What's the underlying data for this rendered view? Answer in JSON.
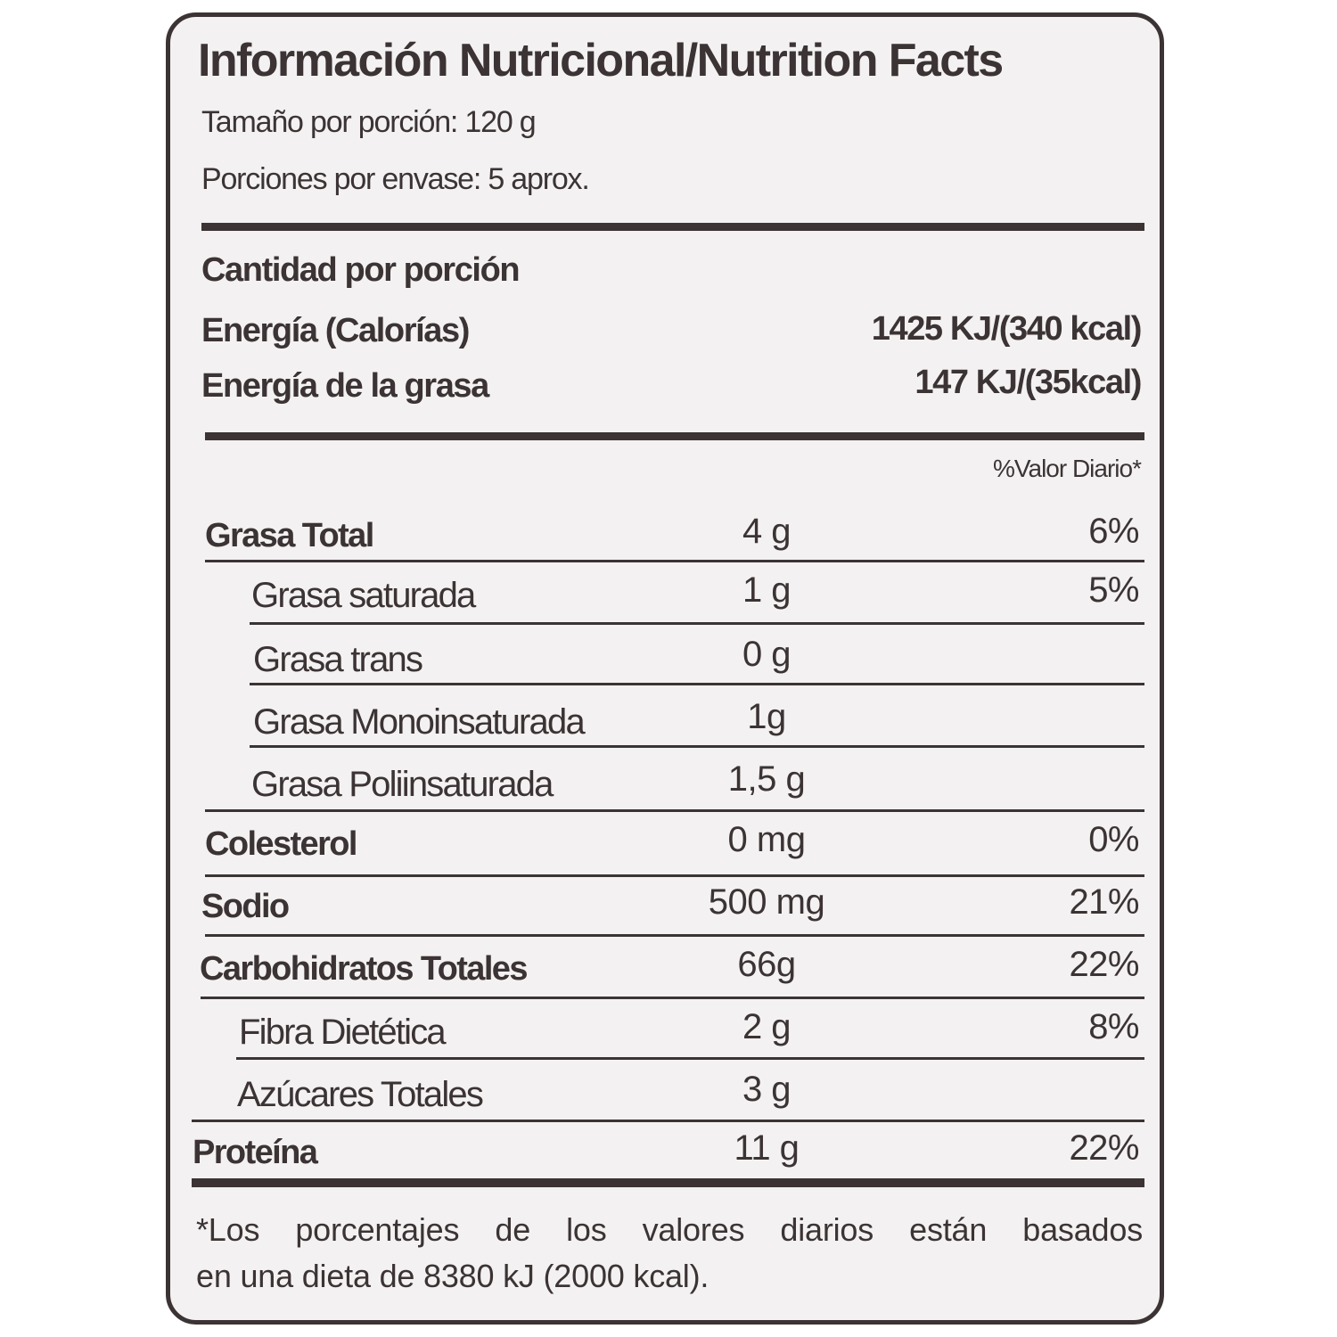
{
  "header": {
    "title": "Información Nutricional/Nutrition Facts",
    "serving_size": "Tamaño por porción: 120 g",
    "servings": "Porciones por envase: 5 aprox."
  },
  "amount": {
    "heading": "Cantidad por porción",
    "rows": [
      {
        "label": "Energía (Calorías)",
        "value": "1425 KJ/(340 kcal)"
      },
      {
        "label": "Energía de la grasa",
        "value": "147 KJ/(35kcal)"
      }
    ]
  },
  "table": {
    "dv_heading": "%Valor Diario*",
    "rows": [
      {
        "label": "Grasa Total",
        "amount": "4 g",
        "dv": "6%"
      },
      {
        "label": "Grasa saturada",
        "amount": "1 g",
        "dv": "5%"
      },
      {
        "label": "Grasa trans",
        "amount": "0 g"
      },
      {
        "label": "Grasa Monoinsaturada",
        "amount": "1g"
      },
      {
        "label": "Grasa Poliinsaturada",
        "amount": "1,5 g"
      },
      {
        "label": "Colesterol",
        "amount": "0 mg",
        "dv": "0%"
      },
      {
        "label": "Sodio",
        "amount": "500 mg",
        "dv": "21%"
      },
      {
        "label": "Carbohidratos Totales",
        "amount": "66g",
        "dv": "22%"
      },
      {
        "label": "Fibra Dietética",
        "amount": "2 g",
        "dv": "8%"
      },
      {
        "label": "Azúcares Totales",
        "amount": "3 g"
      },
      {
        "label": "Proteína",
        "amount": "11 g",
        "dv": "22%"
      }
    ]
  },
  "footnote": [
    "*Los porcentajes de los valores diarios están basados",
    "en una dieta de 8380 kJ (2000 kcal)."
  ]
}
